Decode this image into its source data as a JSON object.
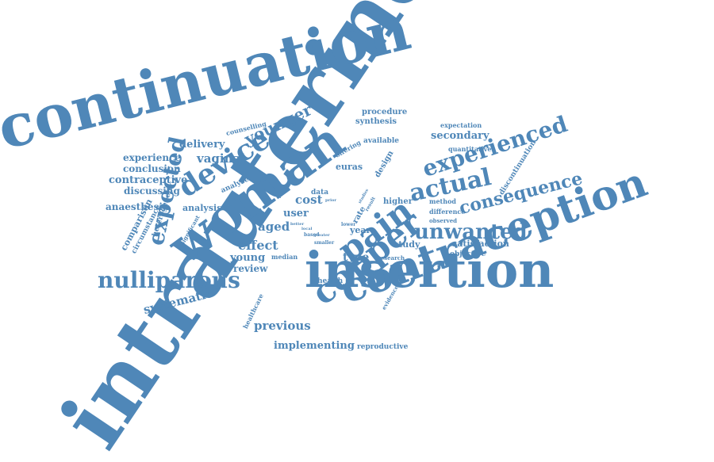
{
  "color": "#4f87b8",
  "words": [
    "intrauterine",
    "continuation",
    "woman",
    "contraception",
    "insertion",
    "copper",
    "device",
    "pain",
    "experienced",
    "actual",
    "expected",
    "nulliparous",
    "unwanted",
    "consequence",
    "younger",
    "delivery",
    "vaginal",
    "experience",
    "conclusion",
    "contraceptive",
    "discussing",
    "anaesthesia",
    "analysis",
    "comparison",
    "circumstance",
    "heterogeneity",
    "systematic",
    "previous",
    "implementing",
    "reproductive",
    "health",
    "healthcare",
    "young",
    "review",
    "effect",
    "aged",
    "median",
    "cost",
    "user",
    "data",
    "type",
    "year",
    "study",
    "satisfaction",
    "objective",
    "method",
    "difference",
    "observed",
    "higher",
    "design",
    "euras",
    "offering",
    "analyse",
    "available",
    "procedure",
    "synthesis",
    "counselling",
    "expectation",
    "secondary",
    "quantitative",
    "discontinuation",
    "research",
    "evidence",
    "significant",
    "lower",
    "based",
    "smaller",
    "greater",
    "local",
    "rate",
    "prior",
    "result",
    "width",
    "better",
    "studies",
    "insertion cost"
  ]
}
